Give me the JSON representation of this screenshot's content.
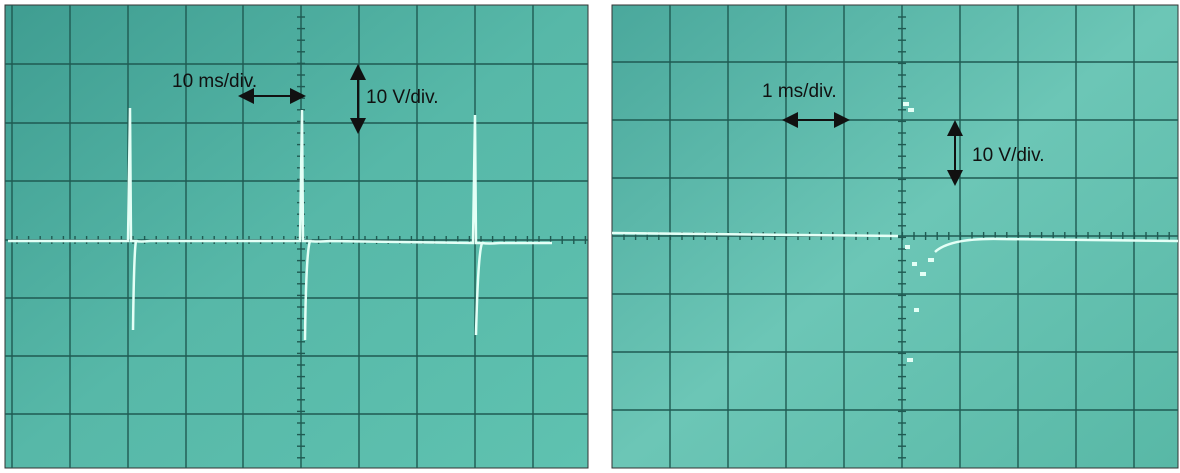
{
  "panels": [
    {
      "time_scale": "10 ms/div.",
      "voltage_scale": "10 V/div."
    },
    {
      "time_scale": "1 ms/div.",
      "voltage_scale": "10 V/div."
    }
  ]
}
